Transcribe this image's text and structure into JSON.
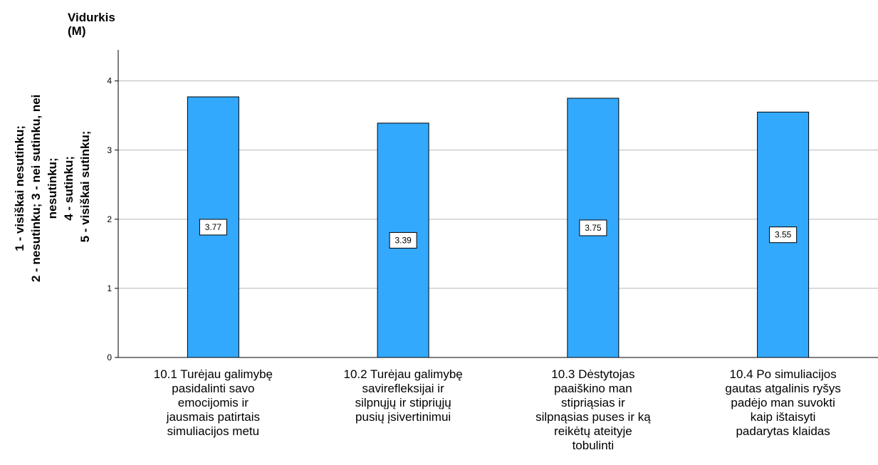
{
  "chart_data": {
    "type": "bar",
    "y_title_lines": [
      "Vidurkis",
      "(M)"
    ],
    "ylabel_lines": [
      "1 - visiškai nesutinku;",
      "2 - nesutinku; 3 - nei sutinku, nei",
      "nesutinku;",
      "4 - sutinku;",
      "5 - visiškai sutinku;"
    ],
    "categories": [
      [
        "10.1 Turėjau galimybę",
        "pasidalinti savo",
        "emocijomis ir",
        "jausmais patirtais",
        "simuliacijos metu"
      ],
      [
        "10.2 Turėjau galimybę",
        "savirefleksijai ir",
        "silpnųjų ir stipriųjų",
        "pusių įsivertinimui"
      ],
      [
        "10.3 Dėstytojas",
        "paaiškino man",
        "stipriąsias ir",
        "silpnąsias puses ir ką",
        "reikėtų ateityje",
        "tobulinti"
      ],
      [
        "10.4 Po simuliacijos",
        "gautas atgalinis ryšys",
        "padėjo man suvokti",
        "kaip ištaisyti",
        "padarytas klaidas"
      ]
    ],
    "values": [
      3.77,
      3.39,
      3.75,
      3.55
    ],
    "data_labels": [
      "3.77",
      "3.39",
      "3.75",
      "3.55"
    ],
    "yticks": [
      "0",
      "1",
      "2",
      "3",
      "4"
    ],
    "ylim": [
      0,
      4.45
    ],
    "grid": true,
    "legend": "none",
    "bar_color": "#33a9fe",
    "bar_edge_color": "#000000"
  }
}
